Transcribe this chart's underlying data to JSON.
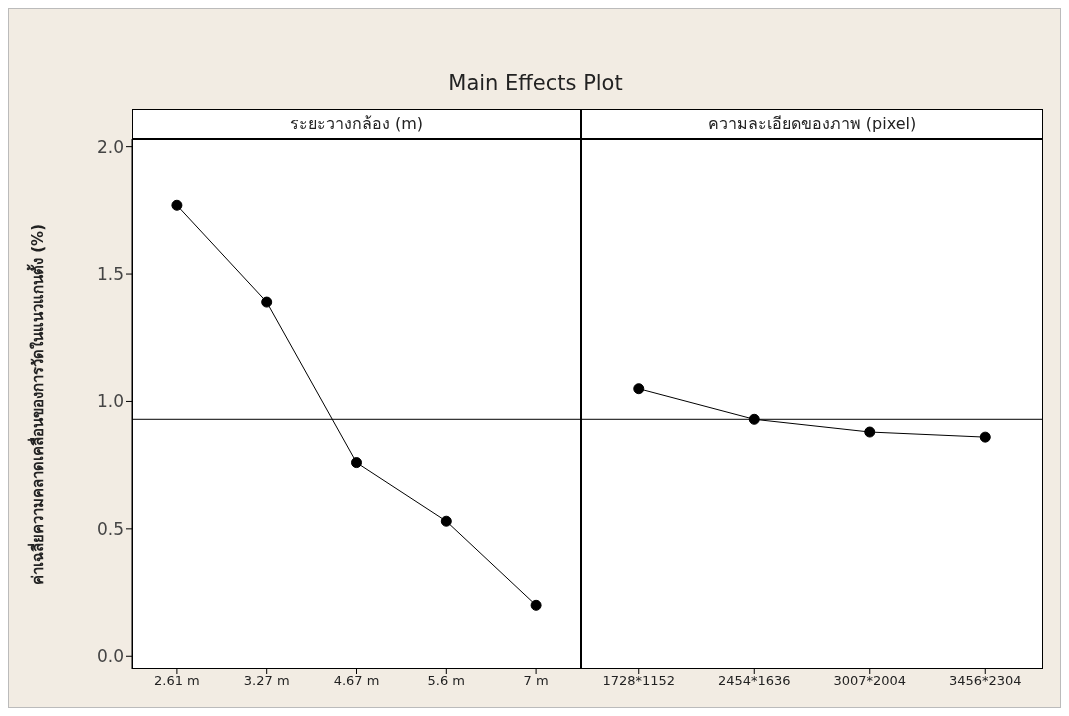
{
  "chart_data": [
    {
      "type": "line",
      "title": "Main Effects Plot",
      "subtitle": "ระยะวางกล้อง (m)",
      "ylabel": "ค่าเฉลี่ยความคลาดเคลื่อนของการวัดในแนวแกนตั้ง (%)",
      "categories": [
        "2.61 m",
        "3.27 m",
        "4.67 m",
        "5.6 m",
        "7 m"
      ],
      "series": [
        {
          "color": "#000000",
          "values": [
            1.77,
            1.39,
            0.76,
            0.53,
            0.2
          ]
        }
      ],
      "ylim": [
        -0.05,
        2.03
      ],
      "yticks": [
        {
          "value": 0,
          "label": "0.0"
        },
        {
          "value": 0.5,
          "label": "0.5"
        },
        {
          "value": 1,
          "label": "1.0"
        },
        {
          "value": 1.5,
          "label": "1.5"
        },
        {
          "value": 2,
          "label": "2.0"
        }
      ],
      "ref_lines": [
        {
          "axis": "y",
          "value": 0.93,
          "color": "#000000"
        }
      ],
      "marker": "circle",
      "line_style": "solid",
      "grid": false
    },
    {
      "type": "line",
      "subtitle": "ความละเอียดของภาพ (pixel)",
      "categories": [
        "1728*1152",
        "2454*1636",
        "3007*2004",
        "3456*2304"
      ],
      "series": [
        {
          "color": "#000000",
          "values": [
            1.05,
            0.93,
            0.88,
            0.86
          ]
        }
      ],
      "ylim": [
        -0.05,
        2.03
      ],
      "tick_labels": "x",
      "ref_lines": [
        {
          "axis": "y",
          "value": 0.93,
          "color": "#000000"
        }
      ],
      "marker": "circle",
      "line_style": "solid",
      "grid": false
    }
  ]
}
